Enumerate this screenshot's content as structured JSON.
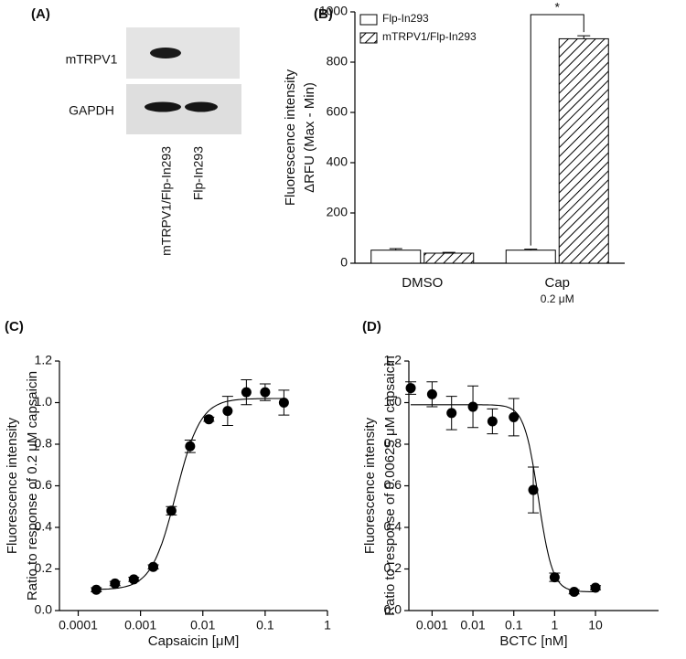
{
  "blot": {
    "panel": "(A)",
    "rows": [
      "mTRPV1",
      "GAPDH"
    ],
    "lanes": [
      "mTRPV1/Flp-In293",
      "Flp-In293"
    ]
  },
  "chart_data": [
    {
      "type": "bar",
      "panel": "(B)",
      "ylabel": [
        "Fluorescence intensity",
        "ΔRFU (Max - Min)"
      ],
      "categories": [
        "DMSO",
        "Cap"
      ],
      "category_notes": [
        null,
        "0.2 μM"
      ],
      "series": [
        {
          "name": "Flp-In293",
          "color": "#ffffff",
          "values": [
            52,
            52
          ],
          "errors": [
            6,
            4
          ]
        },
        {
          "name": "mTRPV1/Flp-In293",
          "color": "#ffffff",
          "pattern": "hatch",
          "values": [
            40,
            893
          ],
          "errors": [
            3,
            12
          ]
        }
      ],
      "ylim": [
        0,
        1000
      ],
      "yticks": [
        0,
        200,
        400,
        600,
        800,
        1000
      ],
      "legend": "upper left",
      "annotation": "*"
    },
    {
      "type": "scatter",
      "panel": "(C)",
      "xlabel": "Capsaicin [μM]",
      "ylabel": [
        "Fluorescence intensity",
        "Ratio to response of 0.2 μM capsaicin"
      ],
      "xscale": "log",
      "color": "#000000",
      "x": [
        0.000195,
        0.00039,
        0.00078,
        0.0016,
        0.003125,
        0.00625,
        0.0125,
        0.025,
        0.05,
        0.1,
        0.2
      ],
      "values": [
        0.1,
        0.13,
        0.15,
        0.21,
        0.48,
        0.79,
        0.92,
        0.96,
        1.05,
        1.05,
        1.0
      ],
      "errors": [
        0.01,
        0.01,
        0.01,
        0.01,
        0.02,
        0.03,
        0.01,
        0.07,
        0.06,
        0.04,
        0.06
      ],
      "fit": {
        "bottom": 0.1,
        "top": 1.02,
        "ec50": 0.0037,
        "hill": 2.2
      },
      "xlim": [
        5e-05,
        1
      ],
      "xticks": [
        0.0001,
        0.001,
        0.01,
        0.1,
        1
      ],
      "ylim": [
        0,
        1.2
      ],
      "yticks": [
        {
          "value": 0,
          "label": "0.0"
        },
        0.2,
        0.4,
        0.6,
        0.8,
        {
          "value": 1,
          "label": "1.0"
        },
        1.2
      ]
    },
    {
      "type": "scatter",
      "panel": "(D)",
      "xlabel": "BCTC [nM]",
      "ylabel": [
        "Fluorescence intensity",
        "Ratio to response of 0.00625 μM capsaicin"
      ],
      "xscale": "log",
      "color": "#000000",
      "x": [
        0.0003,
        0.001,
        0.003,
        0.01,
        0.03,
        0.1,
        0.3,
        1,
        3,
        10
      ],
      "values": [
        1.07,
        1.04,
        0.95,
        0.98,
        0.91,
        0.93,
        0.58,
        0.16,
        0.09,
        0.11
      ],
      "errors": [
        0.03,
        0.06,
        0.08,
        0.1,
        0.06,
        0.09,
        0.11,
        0.02,
        0.01,
        0.01
      ],
      "fit": {
        "bottom": 0.09,
        "top": 0.99,
        "ec50": 0.4,
        "hill": -2.5
      },
      "xlim": [
        0.00027,
        350
      ],
      "xticks": [
        0.001,
        0.01,
        0.1,
        1,
        10
      ],
      "ylim": [
        0,
        1.2
      ],
      "yticks": [
        {
          "value": 0,
          "label": "0.0"
        },
        0.2,
        0.4,
        0.6,
        0.8,
        {
          "value": 1,
          "label": "1.0"
        },
        1.2
      ]
    }
  ]
}
